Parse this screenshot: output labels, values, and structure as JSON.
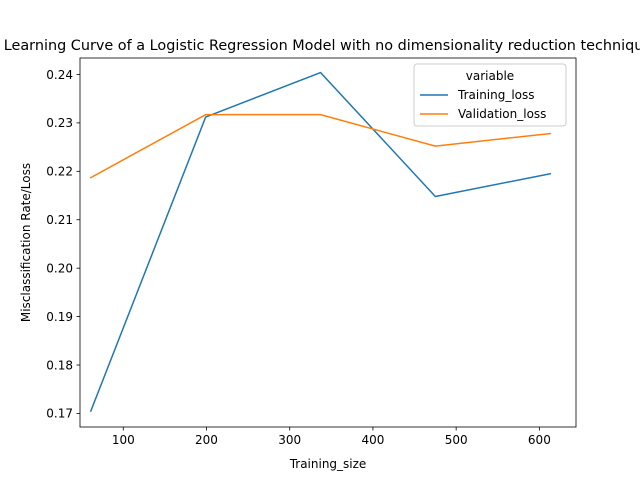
{
  "chart_data": {
    "type": "line",
    "title": "Learning Curve of a Logistic Regression Model with no dimensionality reduction technique",
    "xlabel": "Training_size",
    "ylabel": "Misclassification Rate/Loss",
    "xlim": [
      48,
      644
    ],
    "ylim": [
      0.1672,
      0.2434
    ],
    "xticks": [
      100,
      200,
      300,
      400,
      500,
      600
    ],
    "yticks": [
      0.17,
      0.18,
      0.19,
      0.2,
      0.21,
      0.22,
      0.23,
      0.24
    ],
    "ytick_labels": [
      "0.17",
      "0.18",
      "0.19",
      "0.20",
      "0.21",
      "0.22",
      "0.23",
      "0.24"
    ],
    "x": [
      61,
      199,
      337,
      475,
      613
    ],
    "series": [
      {
        "name": "Training_loss",
        "color": "#1f77b4",
        "values": [
          0.1705,
          0.2312,
          0.2404,
          0.2148,
          0.2195
        ]
      },
      {
        "name": "Validation_loss",
        "color": "#ff7f0e",
        "values": [
          0.2187,
          0.2317,
          0.2317,
          0.2252,
          0.2278
        ]
      }
    ],
    "legend": {
      "title": "variable",
      "position": "upper right"
    },
    "grid": false
  }
}
